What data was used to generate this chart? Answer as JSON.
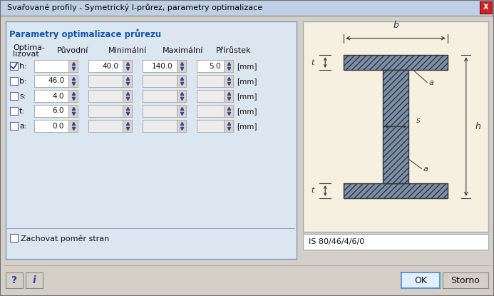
{
  "title": "Svařované profily - Symetrický I-průrez, parametry optimalizace",
  "bg_color": "#d4d0c8",
  "dialog_bg": "#d4d0c8",
  "panel_bg": "#dce6f0",
  "section_title": "Parametry optimalizace průrezu",
  "rows": [
    {
      "label": "h:",
      "checked": true,
      "puvodni": "",
      "min": "40.0",
      "max": "140.0",
      "step": "5.0"
    },
    {
      "label": "b:",
      "checked": false,
      "puvodni": "46.0",
      "min": "",
      "max": "",
      "step": ""
    },
    {
      "label": "s:",
      "checked": false,
      "puvodni": "4.0",
      "min": "",
      "max": "",
      "step": ""
    },
    {
      "label": "t:",
      "checked": false,
      "puvodni": "6.0",
      "min": "",
      "max": "",
      "step": ""
    },
    {
      "label": "a:",
      "checked": false,
      "puvodni": "0.0",
      "min": "",
      "max": "",
      "step": ""
    }
  ],
  "checkbox_label": "Zachovat poměr stran",
  "profile_label": "IS 80/46/4/6/0",
  "btn_ok": "OK",
  "btn_cancel": "Storno",
  "drawing_bg": "#f5f0e0",
  "hatch_color": "#7b8faa",
  "line_color": "#333333",
  "title_bar_color": "#c8d8e8",
  "title_text_color": "#000000"
}
